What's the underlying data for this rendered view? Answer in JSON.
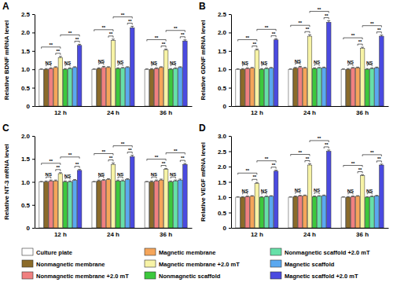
{
  "chart_data": [
    {
      "type": "bar",
      "title": "A",
      "y_label": "Relative BDNF mRNA level",
      "legend": "bottom",
      "categories": [
        "12 h",
        "24 h",
        "36 h"
      ],
      "ylim": [
        0,
        2.5
      ],
      "yticks": [
        0,
        0.5,
        {
          "value": 1,
          "label": "1.0"
        },
        1.5,
        {
          "value": 2,
          "label": "2.0"
        },
        2.5
      ],
      "series": [
        {
          "name": "Culture plate",
          "color": "#ffffff",
          "values": [
            1,
            1,
            1
          ],
          "errors": [
            0.01,
            0.01,
            0.01
          ]
        },
        {
          "name": "Nonmagnetic membrane",
          "color": "#8b6b2a",
          "values": [
            1.0,
            1.02,
            1.0
          ],
          "errors": [
            0.02,
            0.02,
            0.02
          ]
        },
        {
          "name": "Nonmagnetic membrane +2.0 mT",
          "color": "#f08080",
          "values": [
            1.02,
            1.05,
            1.02
          ],
          "errors": [
            0.02,
            0.03,
            0.02
          ]
        },
        {
          "name": "Magnetic membrane",
          "color": "#f5a55a",
          "values": [
            1.05,
            1.05,
            1.05
          ],
          "errors": [
            0.02,
            0.02,
            0.02
          ]
        },
        {
          "name": "Magnetic membrane +2.0 mT",
          "color": "#f7f3a6",
          "values": [
            1.32,
            1.78,
            1.52
          ],
          "errors": [
            0.03,
            0.04,
            0.03
          ]
        },
        {
          "name": "Nonmagnetic scaffold",
          "color": "#3cc83c",
          "values": [
            1.0,
            1.02,
            1.0
          ],
          "errors": [
            0.02,
            0.02,
            0.02
          ]
        },
        {
          "name": "Nonmagnetic scaffold +2.0 mT",
          "color": "#66e0a8",
          "values": [
            1.02,
            1.03,
            1.02
          ],
          "errors": [
            0.02,
            0.02,
            0.02
          ]
        },
        {
          "name": "Magnetic scaffold",
          "color": "#5aa8f0",
          "values": [
            1.05,
            1.05,
            1.05
          ],
          "errors": [
            0.02,
            0.02,
            0.02
          ]
        },
        {
          "name": "Magnetic scaffold +2.0 mT",
          "color": "#4a4ae0",
          "values": [
            1.65,
            2.13,
            1.77
          ],
          "errors": [
            0.03,
            0.04,
            0.03
          ]
        }
      ],
      "annotations": [
        {
          "category": 0,
          "from": 1,
          "to": 2,
          "text": "NS"
        },
        {
          "category": 0,
          "from": 3,
          "to": 4,
          "text": "**"
        },
        {
          "category": 0,
          "from": 0,
          "to": 4,
          "text": "**"
        },
        {
          "category": 0,
          "from": 5,
          "to": 6,
          "text": "NS"
        },
        {
          "category": 0,
          "from": 7,
          "to": 8,
          "text": "**"
        },
        {
          "category": 0,
          "from": 4,
          "to": 8,
          "text": "**"
        },
        {
          "category": 1,
          "from": 1,
          "to": 2,
          "text": "NS"
        },
        {
          "category": 1,
          "from": 3,
          "to": 4,
          "text": "**"
        },
        {
          "category": 1,
          "from": 0,
          "to": 4,
          "text": "**"
        },
        {
          "category": 1,
          "from": 5,
          "to": 6,
          "text": "NS"
        },
        {
          "category": 1,
          "from": 7,
          "to": 8,
          "text": "**"
        },
        {
          "category": 1,
          "from": 4,
          "to": 8,
          "text": "**"
        },
        {
          "category": 2,
          "from": 1,
          "to": 2,
          "text": "NS"
        },
        {
          "category": 2,
          "from": 3,
          "to": 4,
          "text": "**"
        },
        {
          "category": 2,
          "from": 0,
          "to": 4,
          "text": "**"
        },
        {
          "category": 2,
          "from": 5,
          "to": 6,
          "text": "NS"
        },
        {
          "category": 2,
          "from": 7,
          "to": 8,
          "text": "**"
        },
        {
          "category": 2,
          "from": 4,
          "to": 8,
          "text": "**"
        }
      ]
    },
    {
      "type": "bar",
      "title": "B",
      "y_label": "Relative GDNF mRNA level",
      "categories": [
        "12 h",
        "24 h",
        "36 h"
      ],
      "ylim": [
        0,
        2.5
      ],
      "yticks": [
        0,
        0.5,
        {
          "value": 1,
          "label": "1.0"
        },
        1.5,
        {
          "value": 2,
          "label": "2.0"
        },
        2.5
      ],
      "series": [
        {
          "color": "#ffffff",
          "values": [
            1,
            1,
            1
          ],
          "errors": [
            0.01,
            0.01,
            0.01
          ]
        },
        {
          "color": "#8b6b2a",
          "values": [
            1.0,
            1.03,
            1.0
          ],
          "errors": [
            0.02,
            0.02,
            0.02
          ]
        },
        {
          "color": "#f08080",
          "values": [
            1.02,
            1.05,
            1.03
          ],
          "errors": [
            0.02,
            0.03,
            0.02
          ]
        },
        {
          "color": "#f5a55a",
          "values": [
            1.03,
            1.03,
            1.04
          ],
          "errors": [
            0.02,
            0.02,
            0.02
          ]
        },
        {
          "color": "#f7f3a6",
          "values": [
            1.52,
            1.9,
            1.57
          ],
          "errors": [
            0.03,
            0.04,
            0.03
          ]
        },
        {
          "color": "#3cc83c",
          "values": [
            1.0,
            1.02,
            1.0
          ],
          "errors": [
            0.02,
            0.02,
            0.02
          ]
        },
        {
          "color": "#66e0a8",
          "values": [
            1.02,
            1.03,
            1.02
          ],
          "errors": [
            0.02,
            0.02,
            0.02
          ]
        },
        {
          "color": "#5aa8f0",
          "values": [
            1.03,
            1.04,
            1.04
          ],
          "errors": [
            0.02,
            0.02,
            0.02
          ]
        },
        {
          "color": "#4a4ae0",
          "values": [
            1.8,
            2.28,
            1.9
          ],
          "errors": [
            0.03,
            0.04,
            0.03
          ]
        }
      ],
      "annotations": [
        {
          "category": 0,
          "from": 1,
          "to": 2,
          "text": "NS"
        },
        {
          "category": 0,
          "from": 3,
          "to": 4,
          "text": "**"
        },
        {
          "category": 0,
          "from": 0,
          "to": 4,
          "text": "**"
        },
        {
          "category": 0,
          "from": 5,
          "to": 6,
          "text": "NS"
        },
        {
          "category": 0,
          "from": 7,
          "to": 8,
          "text": "**"
        },
        {
          "category": 0,
          "from": 4,
          "to": 8,
          "text": "**"
        },
        {
          "category": 1,
          "from": 1,
          "to": 2,
          "text": "NS"
        },
        {
          "category": 1,
          "from": 3,
          "to": 4,
          "text": "**"
        },
        {
          "category": 1,
          "from": 0,
          "to": 4,
          "text": "**"
        },
        {
          "category": 1,
          "from": 5,
          "to": 6,
          "text": "NS"
        },
        {
          "category": 1,
          "from": 7,
          "to": 8,
          "text": "**"
        },
        {
          "category": 1,
          "from": 4,
          "to": 8,
          "text": "**"
        },
        {
          "category": 2,
          "from": 1,
          "to": 2,
          "text": "NS"
        },
        {
          "category": 2,
          "from": 3,
          "to": 4,
          "text": "**"
        },
        {
          "category": 2,
          "from": 0,
          "to": 4,
          "text": "**"
        },
        {
          "category": 2,
          "from": 5,
          "to": 6,
          "text": "NS"
        },
        {
          "category": 2,
          "from": 7,
          "to": 8,
          "text": "**"
        },
        {
          "category": 2,
          "from": 4,
          "to": 8,
          "text": "**"
        }
      ]
    },
    {
      "type": "bar",
      "title": "C",
      "y_label": "Relative NT-3 mRNA level",
      "categories": [
        "12 h",
        "24 h",
        "36 h"
      ],
      "ylim": [
        0,
        2
      ],
      "yticks": [
        0,
        0.5,
        {
          "value": 1,
          "label": "1.0"
        },
        1.5,
        {
          "value": 2,
          "label": "2.0"
        }
      ],
      "series": [
        {
          "color": "#ffffff",
          "values": [
            1,
            1,
            1
          ],
          "errors": [
            0.01,
            0.01,
            0.01
          ]
        },
        {
          "color": "#8b6b2a",
          "values": [
            1.0,
            1.02,
            1.0
          ],
          "errors": [
            0.02,
            0.02,
            0.02
          ]
        },
        {
          "color": "#f08080",
          "values": [
            1.02,
            1.03,
            1.02
          ],
          "errors": [
            0.02,
            0.02,
            0.02
          ]
        },
        {
          "color": "#f5a55a",
          "values": [
            1.02,
            1.05,
            1.04
          ],
          "errors": [
            0.02,
            0.02,
            0.02
          ]
        },
        {
          "color": "#f7f3a6",
          "values": [
            1.18,
            1.38,
            1.27
          ],
          "errors": [
            0.02,
            0.03,
            0.02
          ]
        },
        {
          "color": "#3cc83c",
          "values": [
            1.0,
            1.02,
            1.0
          ],
          "errors": [
            0.02,
            0.02,
            0.02
          ]
        },
        {
          "color": "#66e0a8",
          "values": [
            1.0,
            1.02,
            1.02
          ],
          "errors": [
            0.02,
            0.02,
            0.02
          ]
        },
        {
          "color": "#5aa8f0",
          "values": [
            1.03,
            1.05,
            1.04
          ],
          "errors": [
            0.02,
            0.02,
            0.02
          ]
        },
        {
          "color": "#4a4ae0",
          "values": [
            1.25,
            1.55,
            1.38
          ],
          "errors": [
            0.02,
            0.03,
            0.02
          ]
        }
      ],
      "annotations": [
        {
          "category": 0,
          "from": 1,
          "to": 2,
          "text": "NS"
        },
        {
          "category": 0,
          "from": 3,
          "to": 4,
          "text": "**"
        },
        {
          "category": 0,
          "from": 0,
          "to": 4,
          "text": "**"
        },
        {
          "category": 0,
          "from": 5,
          "to": 6,
          "text": "NS"
        },
        {
          "category": 0,
          "from": 7,
          "to": 8,
          "text": "**"
        },
        {
          "category": 0,
          "from": 4,
          "to": 8,
          "text": "**"
        },
        {
          "category": 1,
          "from": 1,
          "to": 2,
          "text": "NS"
        },
        {
          "category": 1,
          "from": 3,
          "to": 4,
          "text": "**"
        },
        {
          "category": 1,
          "from": 0,
          "to": 4,
          "text": "**"
        },
        {
          "category": 1,
          "from": 5,
          "to": 6,
          "text": "NS"
        },
        {
          "category": 1,
          "from": 7,
          "to": 8,
          "text": "**"
        },
        {
          "category": 1,
          "from": 4,
          "to": 8,
          "text": "**"
        },
        {
          "category": 2,
          "from": 1,
          "to": 2,
          "text": "NS"
        },
        {
          "category": 2,
          "from": 3,
          "to": 4,
          "text": "**"
        },
        {
          "category": 2,
          "from": 0,
          "to": 4,
          "text": "**"
        },
        {
          "category": 2,
          "from": 5,
          "to": 6,
          "text": "NS"
        },
        {
          "category": 2,
          "from": 7,
          "to": 8,
          "text": "**"
        },
        {
          "category": 2,
          "from": 4,
          "to": 8,
          "text": "**"
        }
      ]
    },
    {
      "type": "bar",
      "title": "D",
      "y_label": "Relative VEGF mRNA level",
      "categories": [
        "12 h",
        "24 h",
        "36 h"
      ],
      "ylim": [
        0,
        3
      ],
      "yticks": [
        0,
        0.5,
        {
          "value": 1,
          "label": "1.0"
        },
        1.5,
        {
          "value": 2,
          "label": "2.0"
        },
        2.5,
        {
          "value": 3,
          "label": "3.0"
        }
      ],
      "series": [
        {
          "color": "#ffffff",
          "values": [
            1,
            1,
            1
          ],
          "errors": [
            0.01,
            0.01,
            0.01
          ]
        },
        {
          "color": "#8b6b2a",
          "values": [
            1.0,
            1.02,
            1.0
          ],
          "errors": [
            0.02,
            0.02,
            0.02
          ]
        },
        {
          "color": "#f08080",
          "values": [
            1.02,
            1.04,
            1.02
          ],
          "errors": [
            0.02,
            0.02,
            0.02
          ]
        },
        {
          "color": "#f5a55a",
          "values": [
            1.03,
            1.05,
            1.03
          ],
          "errors": [
            0.02,
            0.02,
            0.02
          ]
        },
        {
          "color": "#f7f3a6",
          "values": [
            1.45,
            2.05,
            1.7
          ],
          "errors": [
            0.03,
            0.04,
            0.03
          ]
        },
        {
          "color": "#3cc83c",
          "values": [
            1.0,
            1.02,
            1.0
          ],
          "errors": [
            0.02,
            0.02,
            0.02
          ]
        },
        {
          "color": "#66e0a8",
          "values": [
            1.02,
            1.03,
            1.02
          ],
          "errors": [
            0.02,
            0.02,
            0.02
          ]
        },
        {
          "color": "#5aa8f0",
          "values": [
            1.03,
            1.05,
            1.04
          ],
          "errors": [
            0.02,
            0.02,
            0.02
          ]
        },
        {
          "color": "#4a4ae0",
          "values": [
            1.85,
            2.5,
            2.05
          ],
          "errors": [
            0.03,
            0.04,
            0.03
          ]
        }
      ],
      "annotations": [
        {
          "category": 0,
          "from": 1,
          "to": 2,
          "text": "NS"
        },
        {
          "category": 0,
          "from": 3,
          "to": 4,
          "text": "**"
        },
        {
          "category": 0,
          "from": 0,
          "to": 4,
          "text": "**"
        },
        {
          "category": 0,
          "from": 5,
          "to": 6,
          "text": "NS"
        },
        {
          "category": 0,
          "from": 7,
          "to": 8,
          "text": "**"
        },
        {
          "category": 0,
          "from": 4,
          "to": 8,
          "text": "**"
        },
        {
          "category": 1,
          "from": 1,
          "to": 2,
          "text": "NS"
        },
        {
          "category": 1,
          "from": 3,
          "to": 4,
          "text": "**"
        },
        {
          "category": 1,
          "from": 0,
          "to": 4,
          "text": "**"
        },
        {
          "category": 1,
          "from": 5,
          "to": 6,
          "text": "NS"
        },
        {
          "category": 1,
          "from": 7,
          "to": 8,
          "text": "**"
        },
        {
          "category": 1,
          "from": 4,
          "to": 8,
          "text": "**"
        },
        {
          "category": 2,
          "from": 1,
          "to": 2,
          "text": "NS"
        },
        {
          "category": 2,
          "from": 3,
          "to": 4,
          "text": "**"
        },
        {
          "category": 2,
          "from": 0,
          "to": 4,
          "text": "**"
        },
        {
          "category": 2,
          "from": 5,
          "to": 6,
          "text": "NS"
        },
        {
          "category": 2,
          "from": 7,
          "to": 8,
          "text": "**"
        },
        {
          "category": 2,
          "from": 4,
          "to": 8,
          "text": "**"
        }
      ]
    }
  ]
}
